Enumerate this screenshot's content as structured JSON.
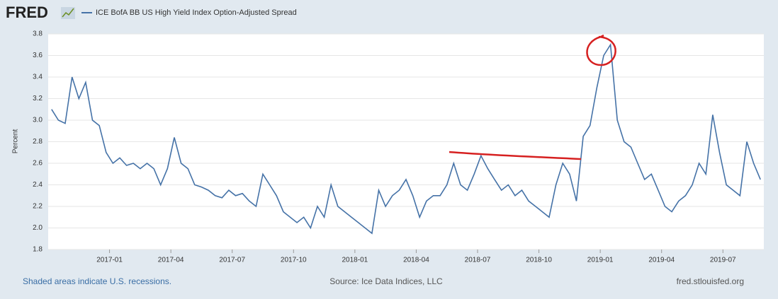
{
  "logo": "FRED",
  "chart_data": {
    "type": "line",
    "y_label": "Percent",
    "series": [
      {
        "name": "ICE BofA BB US High Yield Index Option-Adjusted Spread",
        "color": "#4572a7",
        "values": [
          3.1,
          3.0,
          2.97,
          3.4,
          3.2,
          3.35,
          3.0,
          2.95,
          2.7,
          2.6,
          2.65,
          2.58,
          2.6,
          2.55,
          2.6,
          2.55,
          2.4,
          2.55,
          2.84,
          2.6,
          2.55,
          2.4,
          2.38,
          2.35,
          2.3,
          2.28,
          2.35,
          2.3,
          2.32,
          2.25,
          2.2,
          2.5,
          2.4,
          2.3,
          2.15,
          2.1,
          2.05,
          2.1,
          2.0,
          2.2,
          2.1,
          2.4,
          2.2,
          2.15,
          2.1,
          2.05,
          2.0,
          1.95,
          2.35,
          2.2,
          2.3,
          2.35,
          2.45,
          2.3,
          2.1,
          2.25,
          2.3,
          2.3,
          2.4,
          2.6,
          2.4,
          2.35,
          2.5,
          2.67,
          2.55,
          2.45,
          2.35,
          2.4,
          2.3,
          2.35,
          2.25,
          2.2,
          2.15,
          2.1,
          2.4,
          2.6,
          2.5,
          2.25,
          2.85,
          2.95,
          3.3,
          3.6,
          3.7,
          3.0,
          2.8,
          2.75,
          2.6,
          2.45,
          2.5,
          2.35,
          2.2,
          2.15,
          2.25,
          2.3,
          2.4,
          2.6,
          2.5,
          3.05,
          2.7,
          2.4,
          2.35,
          2.3,
          2.8,
          2.6,
          2.45
        ]
      }
    ],
    "x": [
      "2016-10",
      "2016-10",
      "2016-10",
      "2016-11",
      "2016-11",
      "2016-11",
      "2016-12",
      "2016-12",
      "2016-12",
      "2017-01",
      "2017-01",
      "2017-01",
      "2017-02",
      "2017-02",
      "2017-02",
      "2017-03",
      "2017-03",
      "2017-03",
      "2017-04",
      "2017-04",
      "2017-04",
      "2017-05",
      "2017-05",
      "2017-05",
      "2017-06",
      "2017-06",
      "2017-06",
      "2017-07",
      "2017-07",
      "2017-07",
      "2017-08",
      "2017-08",
      "2017-08",
      "2017-09",
      "2017-09",
      "2017-09",
      "2017-10",
      "2017-10",
      "2017-10",
      "2017-11",
      "2017-11",
      "2017-11",
      "2017-12",
      "2017-12",
      "2017-12",
      "2018-01",
      "2018-01",
      "2018-01",
      "2018-02",
      "2018-02",
      "2018-02",
      "2018-03",
      "2018-03",
      "2018-03",
      "2018-04",
      "2018-04",
      "2018-04",
      "2018-05",
      "2018-05",
      "2018-05",
      "2018-06",
      "2018-06",
      "2018-06",
      "2018-07",
      "2018-07",
      "2018-07",
      "2018-08",
      "2018-08",
      "2018-08",
      "2018-09",
      "2018-09",
      "2018-09",
      "2018-10",
      "2018-10",
      "2018-10",
      "2018-11",
      "2018-11",
      "2018-11",
      "2018-12",
      "2018-12",
      "2018-12",
      "2019-01",
      "2019-01",
      "2019-01",
      "2019-02",
      "2019-02",
      "2019-02",
      "2019-03",
      "2019-03",
      "2019-03",
      "2019-04",
      "2019-04",
      "2019-04",
      "2019-05",
      "2019-05",
      "2019-05",
      "2019-06",
      "2019-06",
      "2019-06",
      "2019-07",
      "2019-07",
      "2019-07",
      "2019-08",
      "2019-08",
      "2019-08"
    ],
    "xlim": [
      "2016-10",
      "2019-09"
    ],
    "xticks": [
      "2017-01",
      "2017-04",
      "2017-07",
      "2017-10",
      "2018-01",
      "2018-04",
      "2018-07",
      "2018-10",
      "2019-01",
      "2019-04",
      "2019-07"
    ],
    "ylim": [
      1.8,
      3.8
    ],
    "yticks": [
      1.8,
      {
        "value": 2,
        "label": "2.0"
      },
      2.2,
      2.4,
      2.6,
      2.8,
      {
        "value": 3,
        "label": "3.0"
      },
      3.2,
      3.4,
      3.6,
      3.8
    ],
    "grid": true
  },
  "footer": {
    "recessions": "Shaded areas indicate U.S. recessions.",
    "source": "Source: Ice Data Indices, LLC",
    "site": "fred.stlouisfed.org"
  }
}
